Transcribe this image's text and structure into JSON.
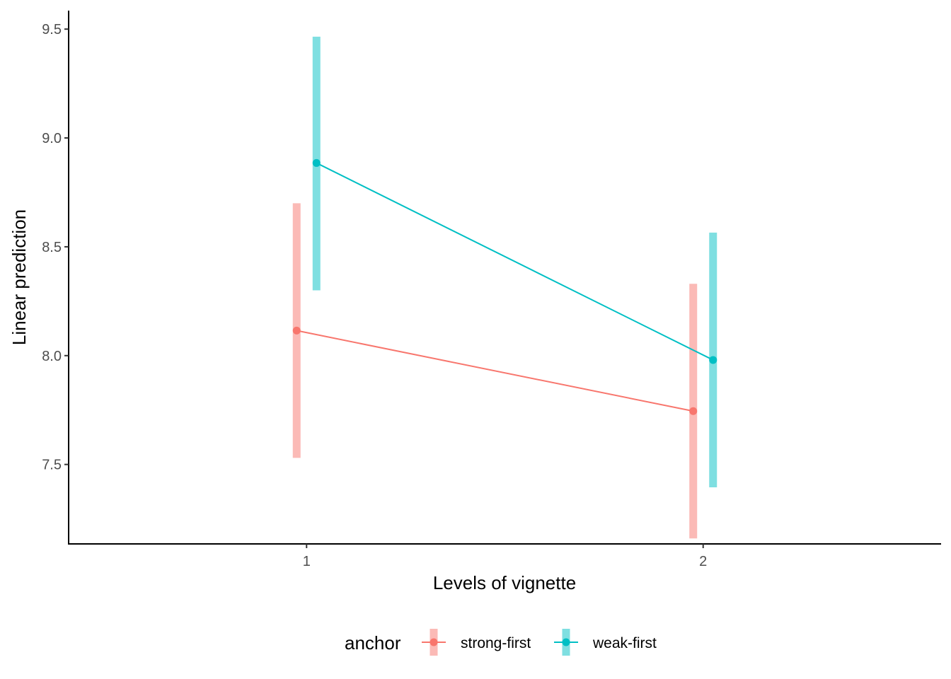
{
  "chart_data": {
    "type": "line",
    "title": "",
    "xlabel": "Levels of vignette",
    "ylabel": "Linear prediction",
    "categories": [
      "1",
      "2"
    ],
    "y_ticks": [
      "7.5",
      "8.0",
      "8.5",
      "9.0",
      "9.5"
    ],
    "ylim": [
      7.135,
      9.585
    ],
    "grid": false,
    "legend": {
      "title": "anchor",
      "position": "bottom"
    },
    "series": [
      {
        "name": "strong-first",
        "color": "#F8766D",
        "values": [
          8.115,
          7.745
        ],
        "ci_lower": [
          7.53,
          7.16
        ],
        "ci_upper": [
          8.7,
          8.33
        ]
      },
      {
        "name": "weak-first",
        "color": "#00BFC4",
        "values": [
          8.885,
          7.98
        ],
        "ci_lower": [
          8.3,
          7.395
        ],
        "ci_upper": [
          9.465,
          8.565
        ]
      }
    ]
  }
}
